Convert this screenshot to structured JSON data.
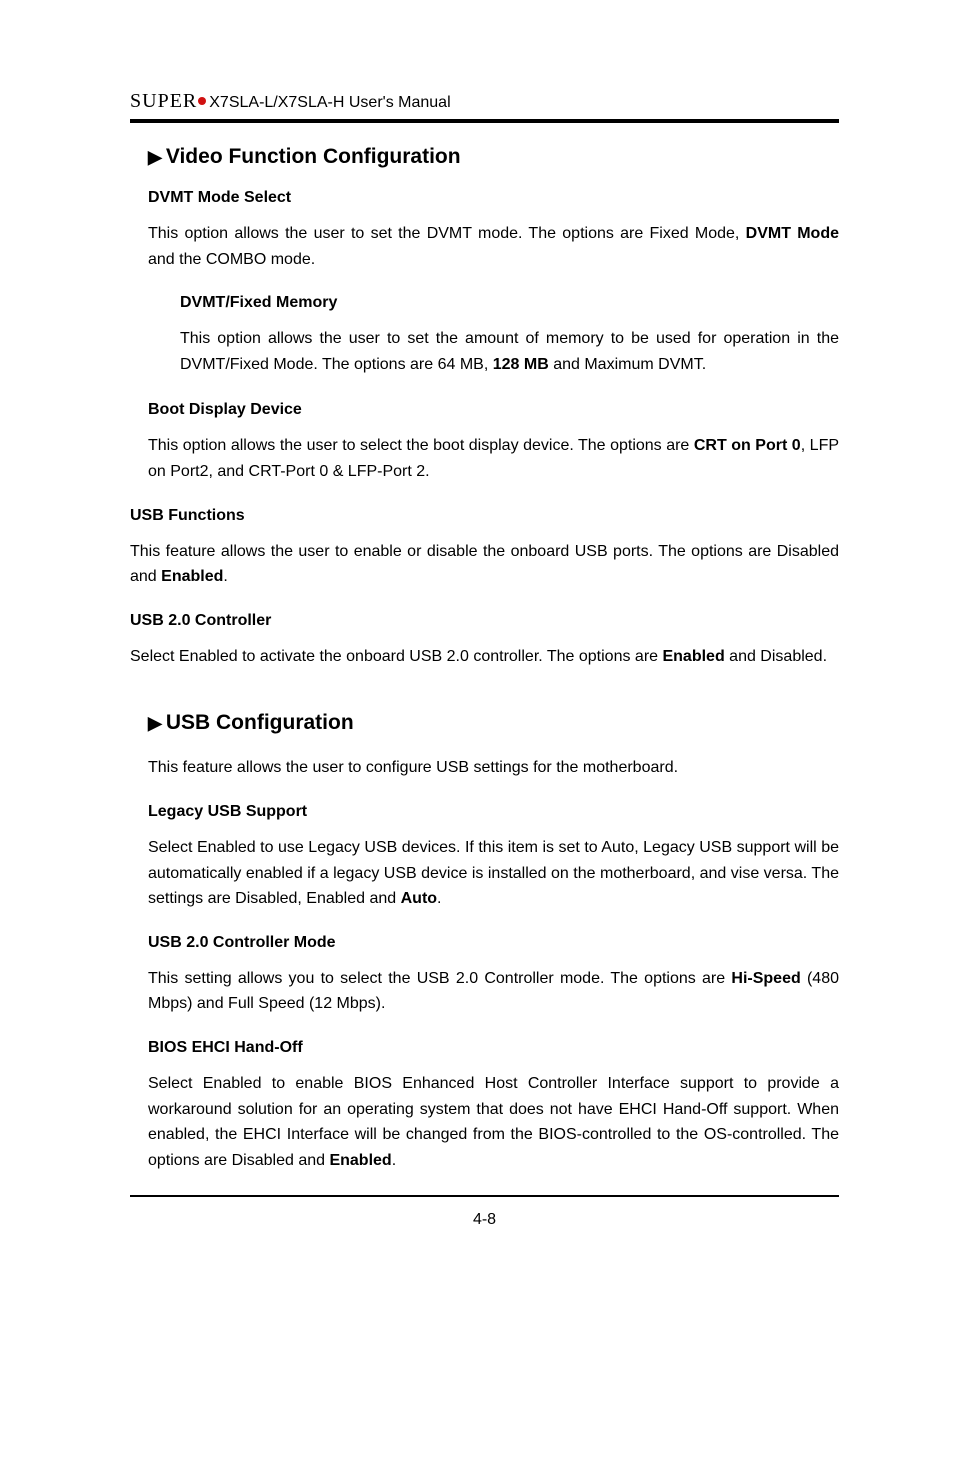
{
  "header": {
    "logo_prefix": "S",
    "logo_rest": "UPER",
    "manual": "X7SLA-L/X7SLA-H User's Manual"
  },
  "video_section": {
    "title": "Video Function Configuration",
    "dvmt_mode": {
      "heading": "DVMT Mode Select",
      "p1a": "This option allows the user to set the DVMT mode. The options are Fixed Mode, ",
      "p1b": "DVMT Mode",
      "p1c": " and the COMBO mode."
    },
    "dvmt_fixed": {
      "heading": "DVMT/Fixed Memory",
      "p1a": "This option allows the user to set the amount of memory to be used for operation in the DVMT/Fixed Mode. The options are 64 MB, ",
      "p1b": "128 MB",
      "p1c": " and Maximum DVMT."
    },
    "boot_display": {
      "heading": "Boot Display Device",
      "p1a": "This option allows the user to select the boot display device. The options are ",
      "p1b": "CRT on Port 0",
      "p1c": ", LFP on Port2, and CRT-Port 0 & LFP-Port 2."
    }
  },
  "usb_functions": {
    "heading": "USB Functions",
    "p1a": "This feature allows the user to enable or disable the onboard USB ports. The options are Disabled and ",
    "p1b": "Enabled",
    "p1c": "."
  },
  "usb20_ctrl": {
    "heading": "USB 2.0 Controller",
    "p1a": "Select Enabled to activate the onboard USB 2.0 controller. The options are ",
    "p1b": "Enabled",
    "p1c": " and Disabled."
  },
  "usb_config": {
    "title": "USB Configuration",
    "intro": "This feature allows the user to configure USB settings for the motherboard.",
    "legacy": {
      "heading": "Legacy USB Support",
      "p1a": "Select Enabled to use Legacy USB devices. If this item is set to Auto, Legacy USB support will be automatically enabled if a legacy USB device is installed on the motherboard, and vise versa. The settings are Disabled, Enabled and ",
      "p1b": "Auto",
      "p1c": "."
    },
    "mode": {
      "heading": "USB 2.0 Controller Mode",
      "p1a": "This setting allows you to select the USB 2.0 Controller mode. The options are ",
      "p1b": "Hi-Speed",
      "p1c": " (480 Mbps) and Full Speed (12 Mbps)."
    },
    "ehci": {
      "heading": "BIOS EHCI Hand-Off",
      "p1a": "Select Enabled to enable BIOS Enhanced Host Controller Interface support to provide a workaround solution for an operating system that does not have EHCI Hand-Off support. When enabled, the EHCI Interface will be changed from the BIOS-controlled to the OS-controlled. The options are Disabled and ",
      "p1b": "Enabled",
      "p1c": "."
    }
  },
  "page_number": "4-8"
}
